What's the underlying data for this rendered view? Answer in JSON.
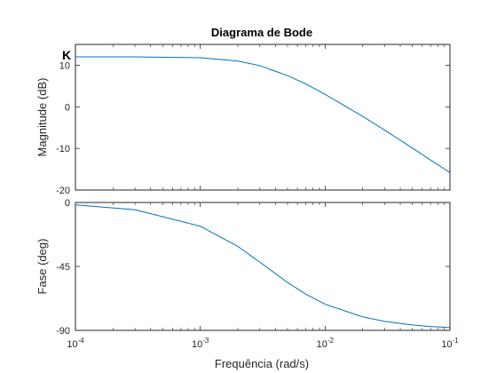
{
  "chart_data": {
    "type": "line",
    "title": "Diagrama de Bode",
    "xlabel": "Frequência  (rad/s)",
    "xscale": "log",
    "xlim": [
      0.0001,
      0.1
    ],
    "x_tick_labels": [
      {
        "base": "10",
        "exp": "-4"
      },
      {
        "base": "10",
        "exp": "-3"
      },
      {
        "base": "10",
        "exp": "-2"
      },
      {
        "base": "10",
        "exp": "-1"
      }
    ],
    "line_color": "#0072bd",
    "grid": false,
    "subplots": [
      {
        "name": "magnitude",
        "ylabel": "Magnitude (dB)",
        "ylim": [
          -20,
          15
        ],
        "y_ticks": [
          {
            "value": 10,
            "label": "10"
          },
          {
            "value": 0,
            "label": "0"
          },
          {
            "value": -10,
            "label": "-10"
          },
          {
            "value": -20,
            "label": "-20"
          }
        ],
        "annotation": "K",
        "series": [
          {
            "x": [
              0.0001,
              0.0003,
              0.001,
              0.002,
              0.003,
              0.005,
              0.007,
              0.01,
              0.02,
              0.03,
              0.05,
              0.07,
              0.1
            ],
            "values": [
              12.0,
              12.0,
              11.8,
              11.0,
              9.9,
              7.5,
              5.5,
              3.0,
              -2.3,
              -5.6,
              -9.9,
              -12.8,
              -15.8
            ]
          }
        ]
      },
      {
        "name": "phase",
        "ylabel": "Fase (deg)",
        "ylim": [
          -90,
          0
        ],
        "y_ticks": [
          {
            "value": 0,
            "label": "0"
          },
          {
            "value": -45,
            "label": "-45"
          },
          {
            "value": -90,
            "label": "-90"
          }
        ],
        "series": [
          {
            "x": [
              0.0001,
              0.0003,
              0.001,
              0.002,
              0.003,
              0.005,
              0.007,
              0.01,
              0.02,
              0.03,
              0.05,
              0.07,
              0.1
            ],
            "values": [
              -1.7,
              -5.1,
              -16.7,
              -30.9,
              -42.0,
              -56.3,
              -64.5,
              -71.6,
              -80.5,
              -83.7,
              -86.2,
              -87.3,
              -88.0
            ]
          }
        ]
      }
    ]
  }
}
